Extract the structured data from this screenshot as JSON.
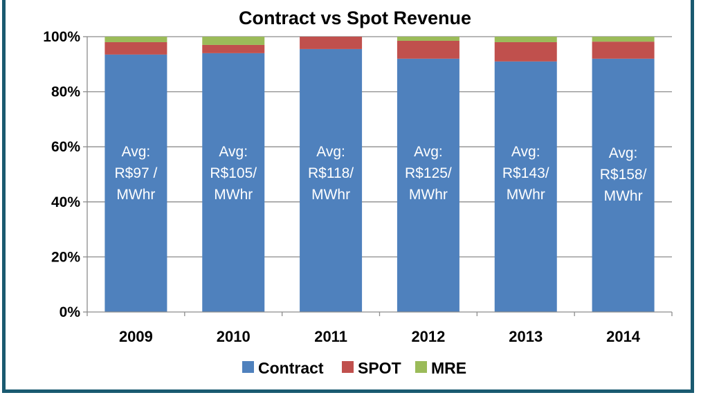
{
  "chart_data": {
    "type": "bar",
    "stacked": true,
    "title": "Contract vs Spot Revenue",
    "xlabel": "",
    "ylabel": "",
    "categories": [
      "2009",
      "2010",
      "2011",
      "2012",
      "2013",
      "2014"
    ],
    "ylim": [
      0,
      100
    ],
    "yticks": [
      "0%",
      "20%",
      "40%",
      "60%",
      "80%",
      "100%"
    ],
    "grid": true,
    "legend_position": "bottom",
    "series": [
      {
        "name": "Contract",
        "color": "#4f81bd",
        "values": [
          93.5,
          94,
          95.5,
          92,
          91,
          92
        ]
      },
      {
        "name": "SPOT",
        "color": "#c0504d",
        "values": [
          4.5,
          3,
          4.5,
          6.5,
          7,
          6.2
        ]
      },
      {
        "name": "MRE",
        "color": "#9bbb59",
        "values": [
          2,
          3,
          0,
          1.5,
          2,
          1.8
        ]
      }
    ],
    "annotations": [
      [
        "Avg:",
        "R$97 /",
        "MWhr"
      ],
      [
        "Avg:",
        "R$105/",
        "MWhr"
      ],
      [
        "Avg:",
        "R$118/",
        "MWhr"
      ],
      [
        "Avg:",
        "R$125/",
        "MWhr"
      ],
      [
        "Avg:",
        "R$143/",
        "MWhr"
      ],
      [
        "Avg:",
        "R$158/",
        "MWhr"
      ]
    ]
  }
}
